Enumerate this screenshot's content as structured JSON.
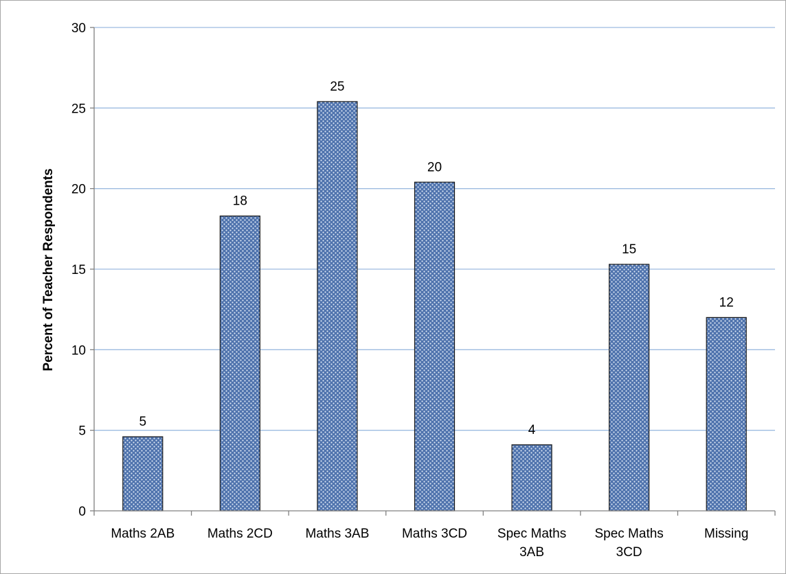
{
  "chart_data": {
    "type": "bar",
    "title": "",
    "xlabel": "",
    "ylabel": "Percent of Teacher Respondents",
    "categories": [
      [
        "Maths 2AB"
      ],
      [
        "Maths 2CD"
      ],
      [
        "Maths 3AB"
      ],
      [
        "Maths 3CD"
      ],
      [
        "Spec Maths",
        "3AB"
      ],
      [
        "Spec Maths",
        "3CD"
      ],
      [
        "Missing"
      ]
    ],
    "values": [
      4.6,
      18.3,
      25.4,
      20.4,
      4.1,
      15.3,
      12.0
    ],
    "data_labels": [
      "5",
      "18",
      "25",
      "20",
      "4",
      "15",
      "12"
    ],
    "ylim": [
      0,
      30
    ],
    "yticks": [
      0,
      5,
      10,
      15,
      20,
      25,
      30
    ],
    "grid": true,
    "legend": "none",
    "colors": {
      "bar_fill": "#4f73ad",
      "bar_dots": "#dbe5f4",
      "bar_border": "#1a1a1a",
      "gridline": "#9dbbe0",
      "axis": "#808080"
    }
  }
}
